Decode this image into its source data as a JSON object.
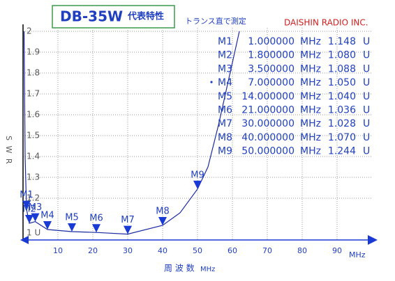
{
  "chart_data": {
    "type": "line",
    "title": "DB-35W",
    "subtitle": "代表特性",
    "note": "トランス直で測定",
    "company": "DAISHIN RADIO INC.",
    "ylabel": "S W R",
    "xlabel": "周 波 数",
    "xlabel_unit": "MHz",
    "x_axis_unit": "MHz",
    "color": "#1a3ad6",
    "grid": true,
    "xlim": [
      0,
      100
    ],
    "ylim": [
      1,
      2
    ],
    "xticks": [
      10,
      20,
      30,
      40,
      50,
      60,
      70,
      80,
      90
    ],
    "yticks": [
      2,
      1.9,
      1.8,
      1.7,
      1.6,
      1.5,
      1.4,
      1.3,
      1.2,
      {
        "value": 1,
        "label": "1 U"
      }
    ],
    "x": [
      0.3,
      0.6,
      1,
      1.8,
      3.5,
      7,
      14,
      21,
      30,
      40,
      45,
      50,
      53,
      56,
      58,
      60,
      62
    ],
    "values": [
      2,
      1.4,
      1.148,
      1.08,
      1.088,
      1.05,
      1.04,
      1.036,
      1.028,
      1.07,
      1.13,
      1.244,
      1.35,
      1.55,
      1.7,
      1.85,
      2
    ],
    "marker_x_unit": "MHz",
    "marker_value_unit": "U",
    "markers": [
      {
        "name": "M1",
        "x": 1,
        "value": 1.148,
        "x_label": "1.000000",
        "value_label": "1.148"
      },
      {
        "name": "M2",
        "x": 1.8,
        "value": 1.08,
        "x_label": "1.800000",
        "value_label": "1.080"
      },
      {
        "name": "M3",
        "x": 3.5,
        "value": 1.088,
        "x_label": "3.500000",
        "value_label": "1.088"
      },
      {
        "name": "M4",
        "x": 7,
        "value": 1.05,
        "x_label": "7.000000",
        "value_label": "1.050"
      },
      {
        "name": "M5",
        "x": 14,
        "value": 1.04,
        "x_label": "14.000000",
        "value_label": "1.040"
      },
      {
        "name": "M6",
        "x": 21,
        "value": 1.036,
        "x_label": "21.000000",
        "value_label": "1.036"
      },
      {
        "name": "M7",
        "x": 30,
        "value": 1.028,
        "x_label": "30.000000",
        "value_label": "1.028"
      },
      {
        "name": "M8",
        "x": 40,
        "value": 1.07,
        "x_label": "40.000000",
        "value_label": "1.070"
      },
      {
        "name": "M9",
        "x": 50,
        "value": 1.244,
        "x_label": "50.000000",
        "value_label": "1.244"
      }
    ]
  }
}
